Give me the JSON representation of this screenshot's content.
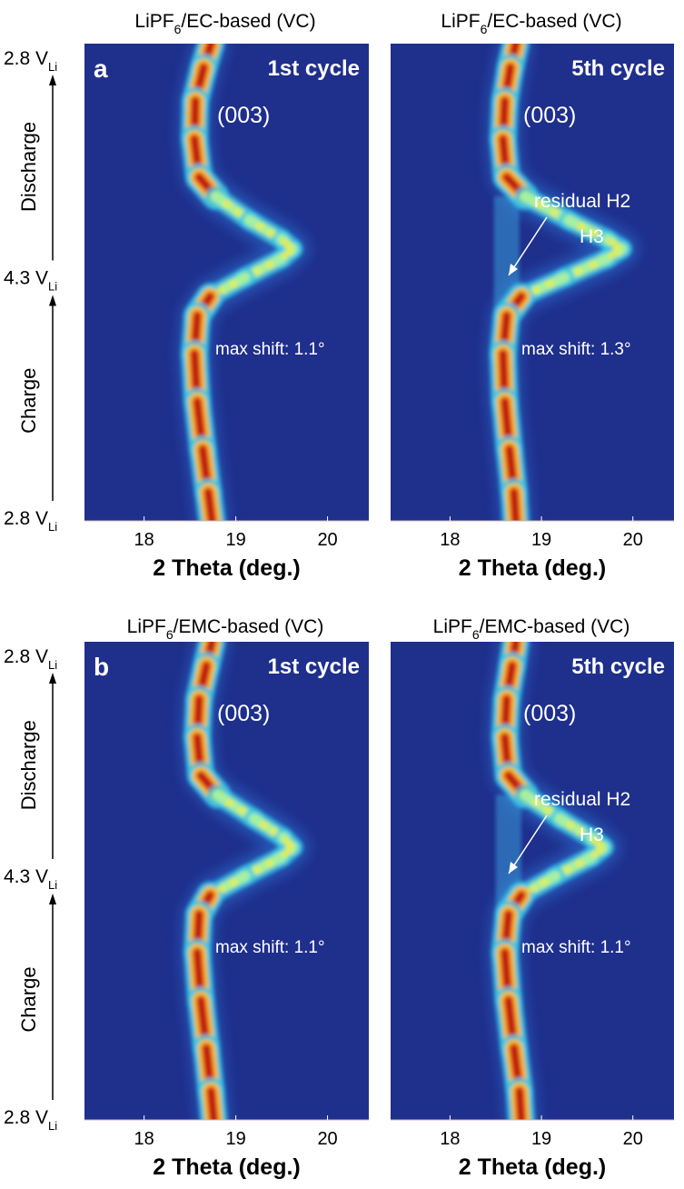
{
  "colors": {
    "background": "#ffffff",
    "plot_bg": "#1f2f8c",
    "colormap": [
      "#1f2f8c",
      "#1a49b8",
      "#1e8fd8",
      "#40d4e0",
      "#a6f0a0",
      "#f0e636",
      "#f0a020",
      "#e83a14",
      "#a10a0a"
    ],
    "text": "#000000",
    "annotation": "#ffffff"
  },
  "chart_data": [
    {
      "type": "heatmap",
      "panel_id": "a1",
      "panel_letter": "a",
      "title_prefix": "LiPF",
      "title_sub": "6",
      "title_suffix": "/EC-based (VC)",
      "cycle_label": "1st cycle",
      "peak_label": "(003)",
      "shift_label": "max shift: 1.1°",
      "xlabel": "2 Theta (deg.)",
      "xlim": [
        17.35,
        20.45
      ],
      "xticks": [
        18,
        19,
        20
      ],
      "xtick_labels": [
        "18",
        "19",
        "20"
      ],
      "ylim": [
        0,
        1
      ],
      "peak_path": [
        [
          0.0,
          18.73
        ],
        [
          0.05,
          18.65
        ],
        [
          0.12,
          18.56
        ],
        [
          0.2,
          18.55
        ],
        [
          0.28,
          18.6
        ],
        [
          0.32,
          18.78
        ],
        [
          0.37,
          19.15
        ],
        [
          0.41,
          19.5
        ],
        [
          0.43,
          19.62
        ],
        [
          0.45,
          19.5
        ],
        [
          0.49,
          19.1
        ],
        [
          0.53,
          18.72
        ],
        [
          0.57,
          18.58
        ],
        [
          0.65,
          18.55
        ],
        [
          0.75,
          18.58
        ],
        [
          0.85,
          18.64
        ],
        [
          0.94,
          18.7
        ],
        [
          1.0,
          18.74
        ]
      ],
      "residual": false
    },
    {
      "type": "heatmap",
      "panel_id": "a5",
      "title_prefix": "LiPF",
      "title_sub": "6",
      "title_suffix": "/EC-based (VC)",
      "cycle_label": "5th cycle",
      "peak_label": "(003)",
      "shift_label": "max shift: 1.3°",
      "residual_label": "residual H2",
      "h3_label": "H3",
      "xlabel": "2 Theta (deg.)",
      "xlim": [
        17.35,
        20.45
      ],
      "xticks": [
        18,
        19,
        20
      ],
      "xtick_labels": [
        "18",
        "19",
        "20"
      ],
      "ylim": [
        0,
        1
      ],
      "peak_path": [
        [
          0.0,
          18.72
        ],
        [
          0.05,
          18.66
        ],
        [
          0.12,
          18.6
        ],
        [
          0.2,
          18.58
        ],
        [
          0.28,
          18.62
        ],
        [
          0.32,
          18.82
        ],
        [
          0.37,
          19.3
        ],
        [
          0.41,
          19.72
        ],
        [
          0.43,
          19.88
        ],
        [
          0.45,
          19.72
        ],
        [
          0.49,
          19.25
        ],
        [
          0.53,
          18.78
        ],
        [
          0.57,
          18.62
        ],
        [
          0.65,
          18.58
        ],
        [
          0.75,
          18.6
        ],
        [
          0.85,
          18.65
        ],
        [
          0.94,
          18.7
        ],
        [
          1.0,
          18.72
        ]
      ],
      "residual": true
    },
    {
      "type": "heatmap",
      "panel_id": "b1",
      "panel_letter": "b",
      "title_prefix": "LiPF",
      "title_sub": "6",
      "title_suffix": "/EMC-based (VC)",
      "cycle_label": "1st cycle",
      "peak_label": "(003)",
      "shift_label": "max shift: 1.1°",
      "xlabel": "2 Theta (deg.)",
      "xlim": [
        17.35,
        20.45
      ],
      "xticks": [
        18,
        19,
        20
      ],
      "xtick_labels": [
        "18",
        "19",
        "20"
      ],
      "ylim": [
        0,
        1
      ],
      "peak_path": [
        [
          0.0,
          18.74
        ],
        [
          0.05,
          18.68
        ],
        [
          0.12,
          18.6
        ],
        [
          0.2,
          18.58
        ],
        [
          0.28,
          18.62
        ],
        [
          0.32,
          18.8
        ],
        [
          0.37,
          19.2
        ],
        [
          0.41,
          19.52
        ],
        [
          0.43,
          19.62
        ],
        [
          0.45,
          19.5
        ],
        [
          0.49,
          19.1
        ],
        [
          0.53,
          18.72
        ],
        [
          0.57,
          18.6
        ],
        [
          0.65,
          18.58
        ],
        [
          0.75,
          18.62
        ],
        [
          0.85,
          18.68
        ],
        [
          0.94,
          18.73
        ],
        [
          1.0,
          18.76
        ]
      ],
      "residual": false
    },
    {
      "type": "heatmap",
      "panel_id": "b5",
      "title_prefix": "LiPF",
      "title_sub": "6",
      "title_suffix": "/EMC-based (VC)",
      "cycle_label": "5th cycle",
      "peak_label": "(003)",
      "shift_label": "max shift: 1.1°",
      "residual_label": "residual H2",
      "h3_label": "H3",
      "xlabel": "2 Theta (deg.)",
      "xlim": [
        17.35,
        20.45
      ],
      "xticks": [
        18,
        19,
        20
      ],
      "xtick_labels": [
        "18",
        "19",
        "20"
      ],
      "ylim": [
        0,
        1
      ],
      "peak_path": [
        [
          0.0,
          18.72
        ],
        [
          0.05,
          18.68
        ],
        [
          0.12,
          18.62
        ],
        [
          0.2,
          18.6
        ],
        [
          0.28,
          18.64
        ],
        [
          0.32,
          18.82
        ],
        [
          0.37,
          19.2
        ],
        [
          0.41,
          19.55
        ],
        [
          0.43,
          19.68
        ],
        [
          0.45,
          19.55
        ],
        [
          0.49,
          19.15
        ],
        [
          0.53,
          18.78
        ],
        [
          0.57,
          18.64
        ],
        [
          0.65,
          18.6
        ],
        [
          0.75,
          18.64
        ],
        [
          0.85,
          18.7
        ],
        [
          0.94,
          18.76
        ],
        [
          1.0,
          18.78
        ]
      ],
      "residual": true
    }
  ],
  "y_axis": {
    "top_label": "2.8 V",
    "top_sub": "Li",
    "mid_label": "4.3 V",
    "mid_sub": "Li",
    "bottom_label": "2.8 V",
    "bottom_sub": "Li",
    "discharge_label": "Discharge",
    "charge_label": "Charge"
  }
}
